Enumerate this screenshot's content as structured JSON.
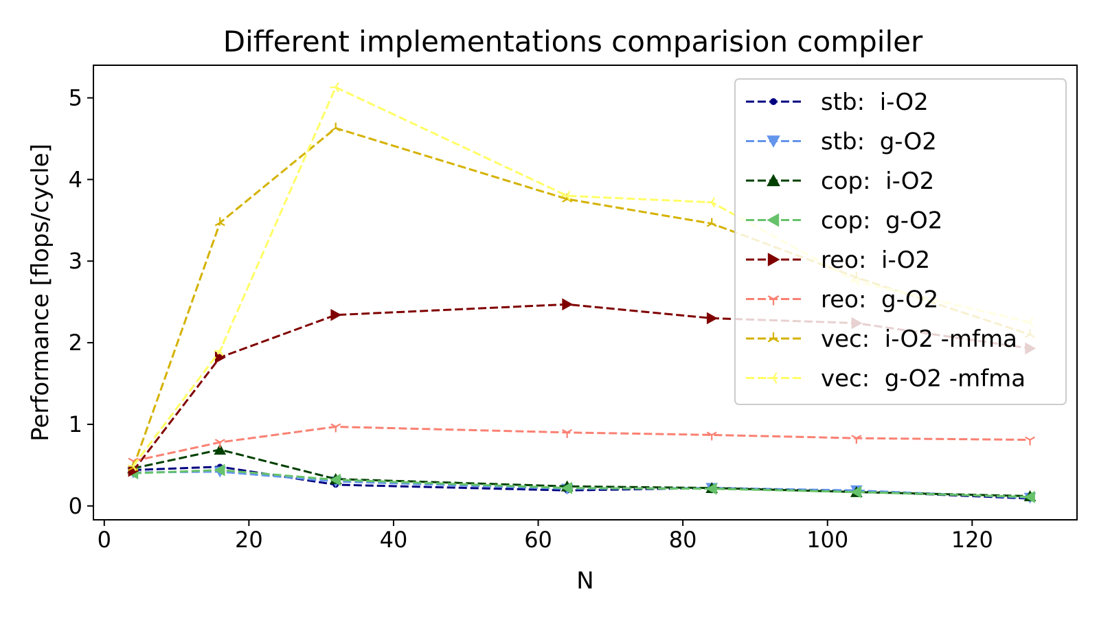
{
  "chart_data": {
    "type": "line",
    "title": "Different implementations comparision compiler",
    "xlabel": "N",
    "ylabel": "Performance [flops/cycle]",
    "xlim": [
      -1.5,
      134.5
    ],
    "ylim": [
      -0.17,
      5.4
    ],
    "xticks": [
      0,
      20,
      40,
      60,
      80,
      100,
      120
    ],
    "yticks": [
      0,
      1,
      2,
      3,
      4,
      5
    ],
    "grid": false,
    "legend_position": "top-right",
    "x": [
      4,
      16,
      32,
      64,
      84,
      104,
      128
    ],
    "series": [
      {
        "name": "stb:  i-O2",
        "color": "#000080",
        "marker": "point",
        "values": [
          0.44,
          0.48,
          0.26,
          0.19,
          0.22,
          0.18,
          0.09
        ]
      },
      {
        "name": "stb:  g-O2",
        "color": "#6495ED",
        "marker": "triangle-down",
        "values": [
          0.41,
          0.42,
          0.3,
          0.21,
          0.22,
          0.19,
          0.1
        ]
      },
      {
        "name": "cop:  i-O2",
        "color": "#004000",
        "marker": "triangle-up",
        "values": [
          0.46,
          0.69,
          0.33,
          0.24,
          0.22,
          0.17,
          0.12
        ]
      },
      {
        "name": "cop:  g-O2",
        "color": "#66C26A",
        "marker": "triangle-left",
        "values": [
          0.4,
          0.44,
          0.32,
          0.22,
          0.21,
          0.17,
          0.11
        ]
      },
      {
        "name": "reo:  i-O2",
        "color": "#800000",
        "marker": "triangle-right",
        "values": [
          0.43,
          1.82,
          2.34,
          2.47,
          2.3,
          2.24,
          1.93
        ]
      },
      {
        "name": "reo:  g-O2",
        "color": "#FA8072",
        "marker": "tri-down",
        "values": [
          0.55,
          0.78,
          0.97,
          0.9,
          0.87,
          0.83,
          0.81
        ]
      },
      {
        "name": "vec:  i-O2 -mfma",
        "color": "#D4B200",
        "marker": "tri-up",
        "values": [
          0.47,
          3.47,
          4.63,
          3.76,
          3.46,
          2.8,
          2.1
        ]
      },
      {
        "name": "vec:  g-O2 -mfma",
        "color": "#FFFF66",
        "marker": "tri-left",
        "values": [
          0.49,
          1.9,
          5.13,
          3.8,
          3.72,
          2.75,
          2.25
        ]
      }
    ]
  }
}
